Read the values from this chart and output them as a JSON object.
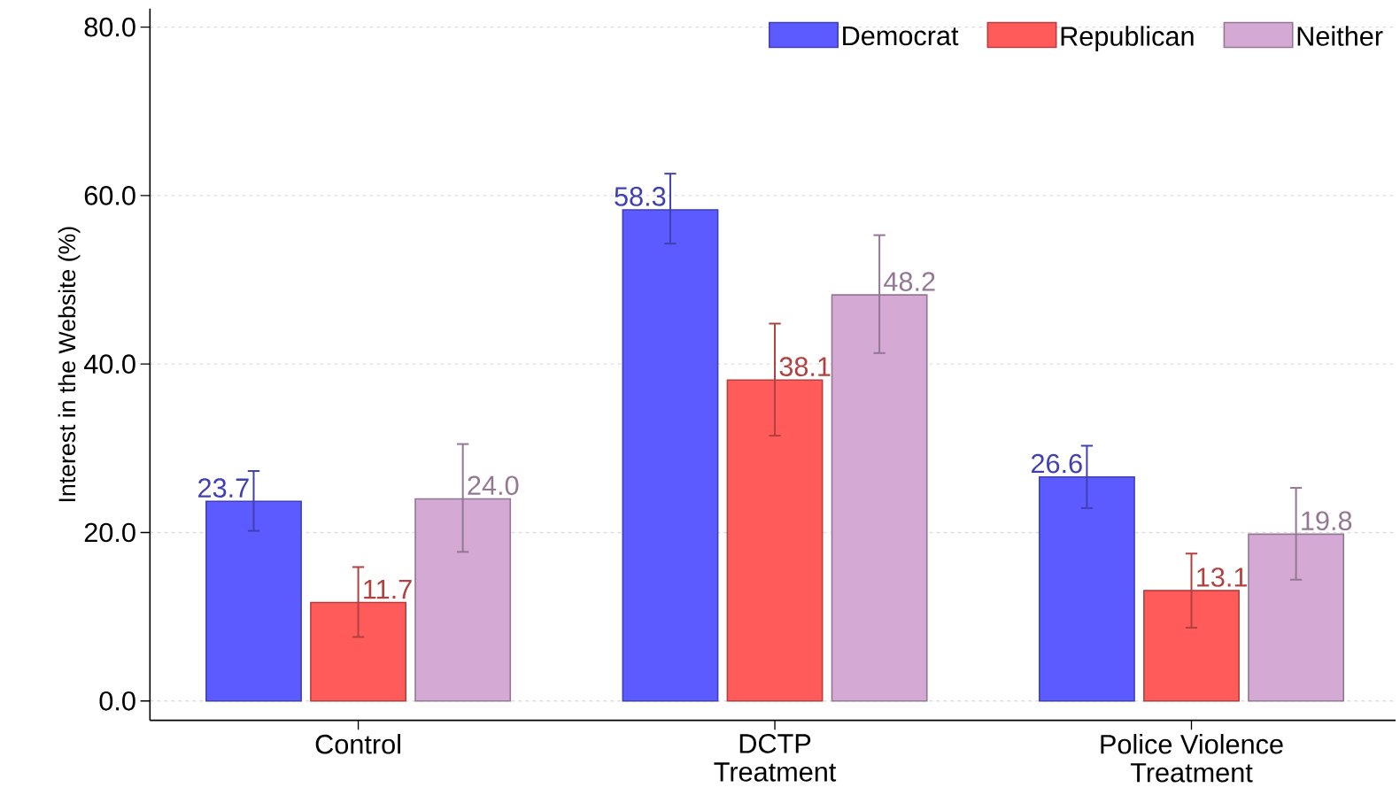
{
  "chart_data": {
    "type": "bar",
    "ylabel": "Interest in the Website (%)",
    "categories": [
      "Control",
      "DCTP\nTreatment",
      "Police Violence\nTreatment"
    ],
    "series": [
      {
        "name": "Democrat",
        "color": "#5b5bff",
        "values": [
          23.7,
          58.3,
          26.6
        ],
        "value_labels": [
          "23.7",
          "58.3",
          "26.6"
        ],
        "errors": [
          [
            20.2,
            27.3
          ],
          [
            54.3,
            62.6
          ],
          [
            22.9,
            30.3
          ]
        ]
      },
      {
        "name": "Republican",
        "color": "#ff5b5b",
        "values": [
          11.7,
          38.1,
          13.1
        ],
        "value_labels": [
          "11.7",
          "38.1",
          "13.1"
        ],
        "errors": [
          [
            7.6,
            15.9
          ],
          [
            31.5,
            44.8
          ],
          [
            8.7,
            17.5
          ]
        ]
      },
      {
        "name": "Neither",
        "color": "#d4aad4",
        "values": [
          24.0,
          48.2,
          19.8
        ],
        "value_labels": [
          "24.0",
          "48.2",
          "19.8"
        ],
        "errors": [
          [
            17.7,
            30.5
          ],
          [
            41.3,
            55.3
          ],
          [
            14.4,
            25.3
          ]
        ]
      }
    ],
    "ylim": [
      -2.3,
      82.2
    ],
    "yticks": [
      {
        "value": 0,
        "label": "0.0"
      },
      {
        "value": 20,
        "label": "20.0"
      },
      {
        "value": 40,
        "label": "40.0"
      },
      {
        "value": 60,
        "label": "60.0"
      },
      {
        "value": 80,
        "label": "80.0"
      }
    ],
    "grid": "y",
    "legend": "top right"
  }
}
